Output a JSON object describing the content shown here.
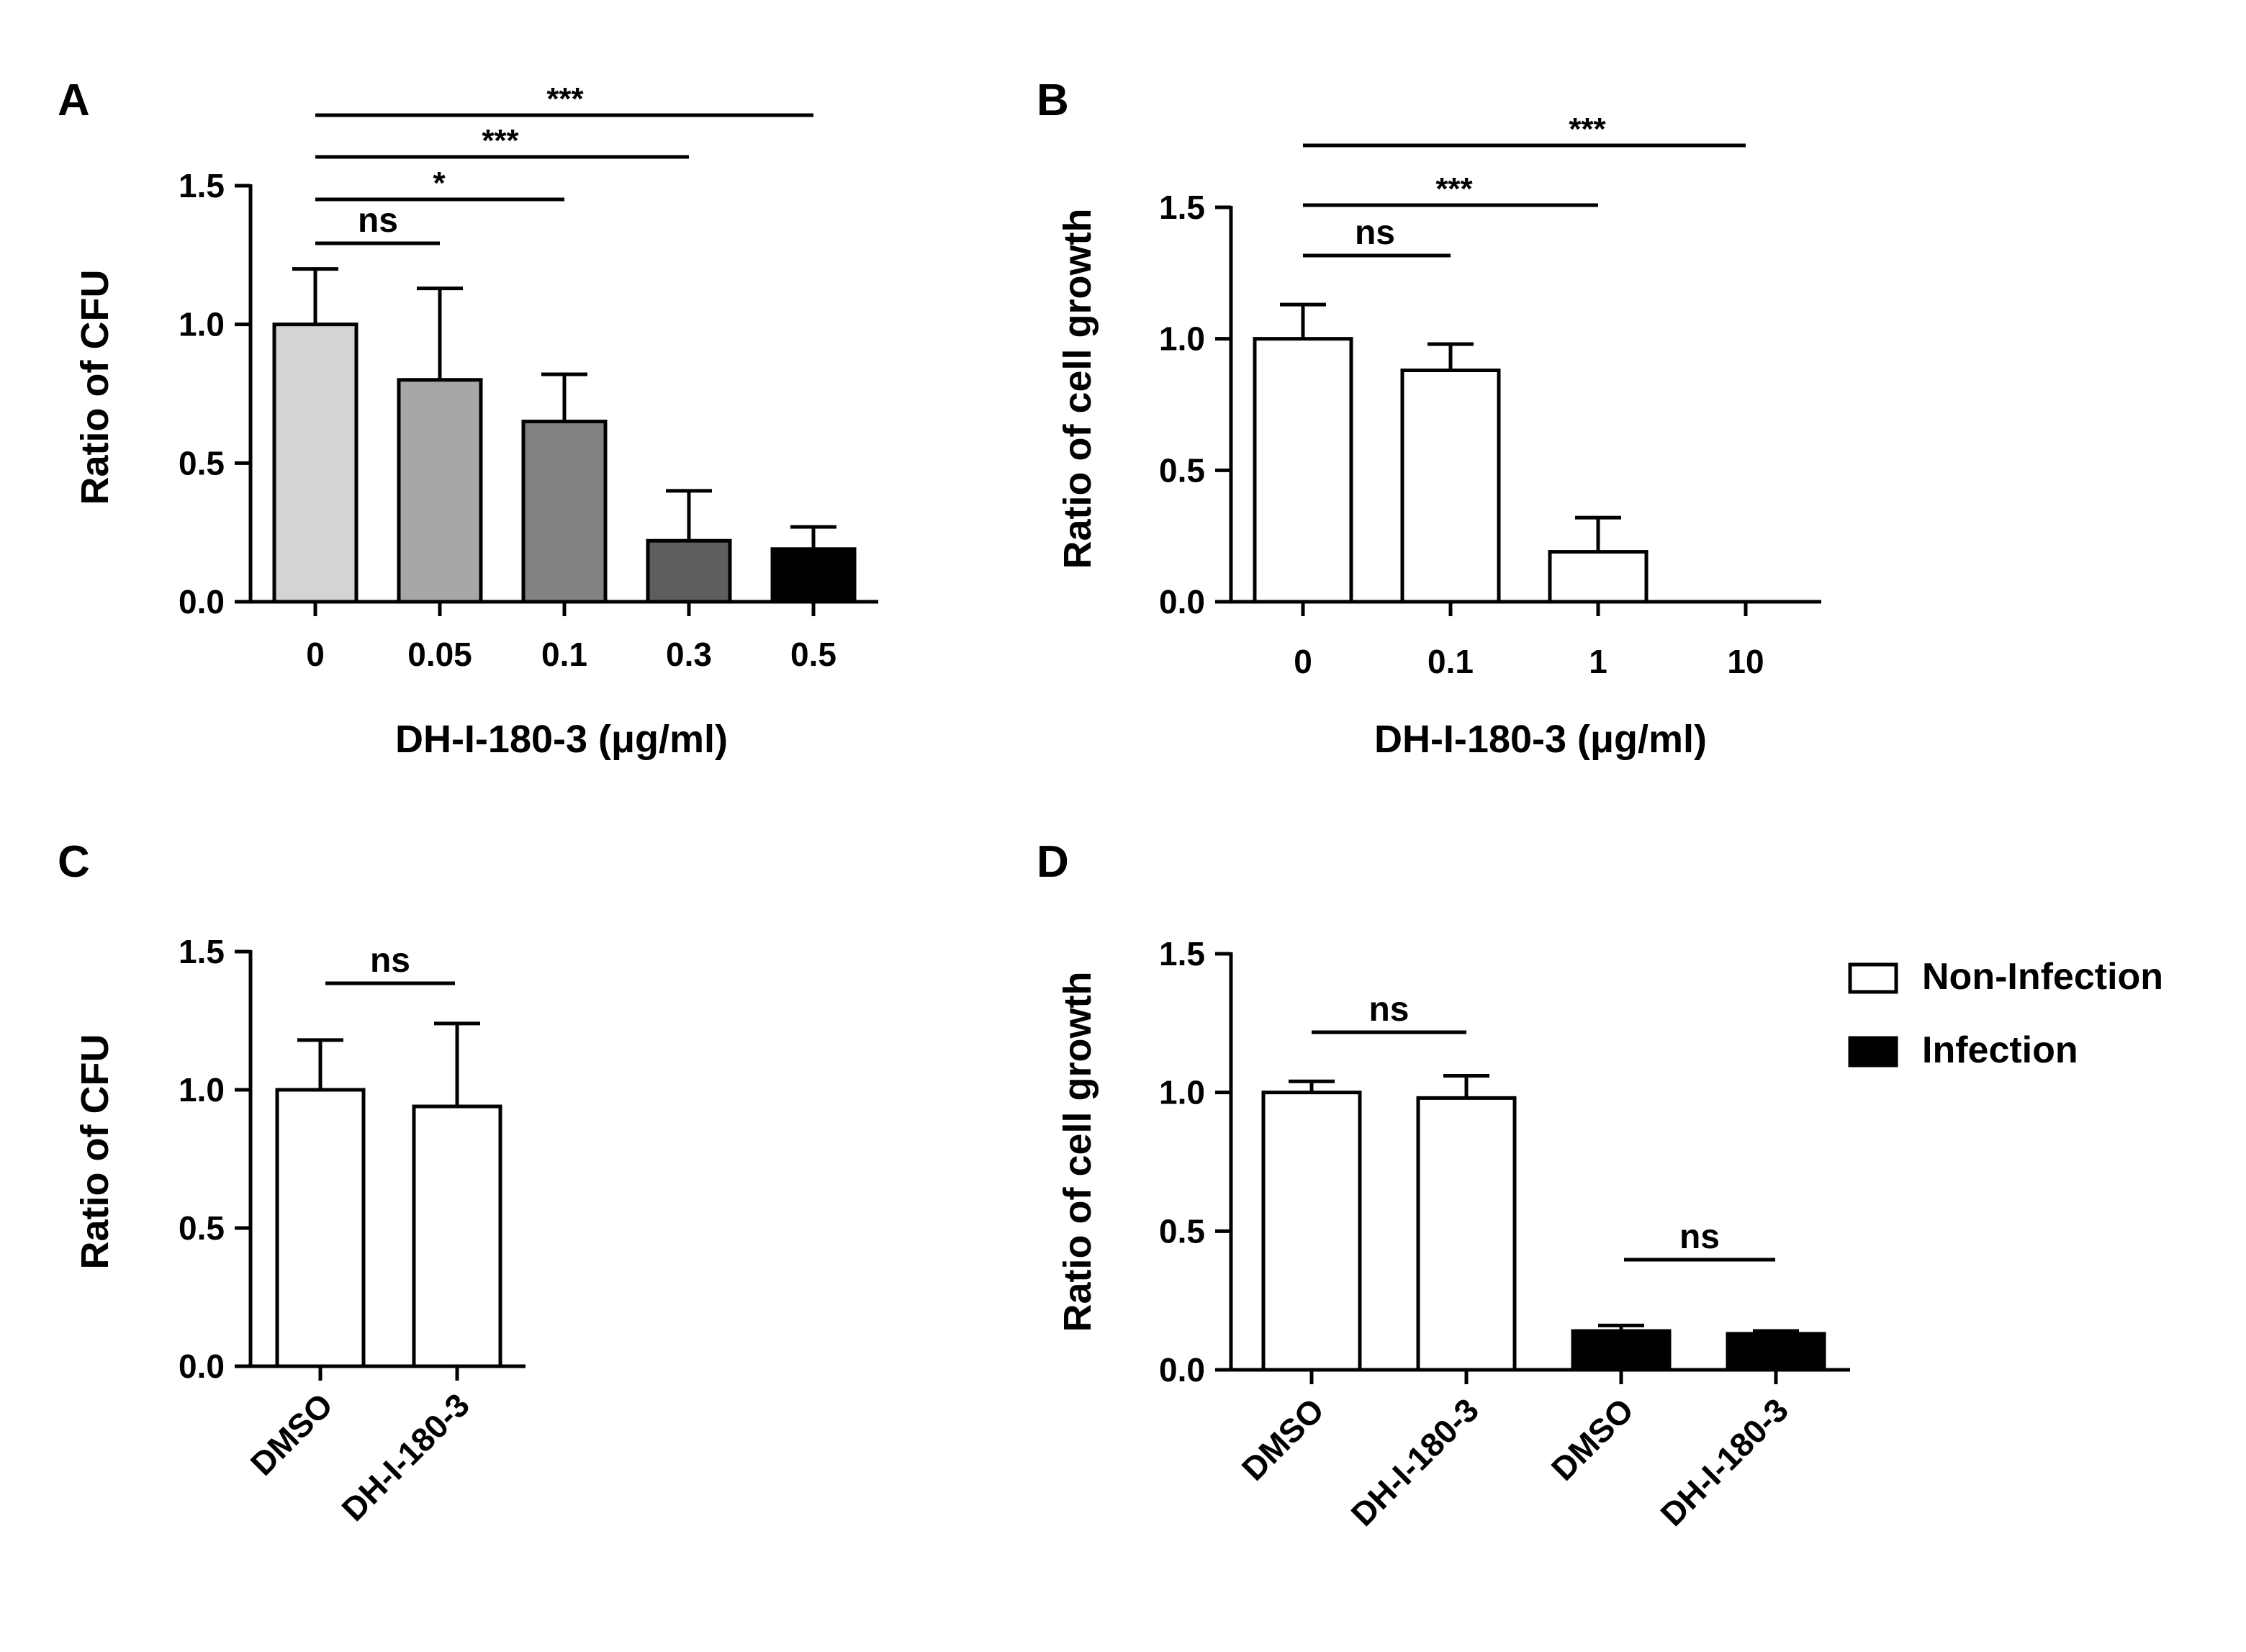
{
  "chart_data": [
    {
      "panel": "A",
      "type": "bar",
      "ylabel": "Ratio of CFU",
      "xlabel": "DH-I-180-3  (μg/ml)",
      "ylim": [
        0,
        1.5
      ],
      "yticks": [
        "0.0",
        "0.5",
        "1.0",
        "1.5"
      ],
      "categories": [
        "0",
        "0.05",
        "0.1",
        "0.3",
        "0.5"
      ],
      "values": [
        1.0,
        0.8,
        0.65,
        0.22,
        0.19
      ],
      "errors": [
        0.2,
        0.33,
        0.17,
        0.18,
        0.08
      ],
      "colors": [
        "#d4d4d4",
        "#a7a7a9",
        "#828282",
        "#5e5e5e",
        "#000000"
      ],
      "comparisons": [
        {
          "from": 0,
          "to": 1,
          "label": "ns"
        },
        {
          "from": 0,
          "to": 2,
          "label": "*"
        },
        {
          "from": 0,
          "to": 3,
          "label": "***"
        },
        {
          "from": 0,
          "to": 4,
          "label": "***"
        }
      ]
    },
    {
      "panel": "B",
      "type": "bar",
      "ylabel": "Ratio of cell growth",
      "xlabel": "DH-I-180-3  (μg/ml)",
      "ylim": [
        0,
        1.5
      ],
      "yticks": [
        "0.0",
        "0.5",
        "1.0",
        "1.5"
      ],
      "categories": [
        "0",
        "0.1",
        "1",
        "10"
      ],
      "values": [
        1.0,
        0.88,
        0.19,
        0.0
      ],
      "errors": [
        0.13,
        0.1,
        0.13,
        0.0
      ],
      "colors": [
        "#ffffff",
        "#ffffff",
        "#ffffff",
        "#ffffff"
      ],
      "comparisons": [
        {
          "from": 0,
          "to": 1,
          "label": "ns"
        },
        {
          "from": 0,
          "to": 2,
          "label": "***"
        },
        {
          "from": 0,
          "to": 3,
          "label": "***"
        }
      ]
    },
    {
      "panel": "C",
      "type": "bar",
      "ylabel": "Ratio of CFU",
      "ylim": [
        0,
        1.5
      ],
      "yticks": [
        "0.0",
        "0.5",
        "1.0",
        "1.5"
      ],
      "categories": [
        "DMSO",
        "DH-I-180-3"
      ],
      "values": [
        1.0,
        0.94
      ],
      "errors": [
        0.18,
        0.3
      ],
      "colors": [
        "#ffffff",
        "#ffffff"
      ],
      "comparisons": [
        {
          "from": 0,
          "to": 1,
          "label": "ns"
        }
      ]
    },
    {
      "panel": "D",
      "type": "bar",
      "ylabel": "Ratio of cell growth",
      "ylim": [
        0,
        1.5
      ],
      "yticks": [
        "0.0",
        "0.5",
        "1.0",
        "1.5"
      ],
      "categories": [
        "DMSO",
        "DH-I-180-3",
        "DMSO",
        "DH-I-180-3"
      ],
      "values": [
        1.0,
        0.98,
        0.14,
        0.13
      ],
      "errors": [
        0.04,
        0.08,
        0.02,
        0.01
      ],
      "colors": [
        "#ffffff",
        "#ffffff",
        "#000000",
        "#000000"
      ],
      "comparisons": [
        {
          "from": 0,
          "to": 1,
          "label": "ns"
        },
        {
          "from": 2,
          "to": 3,
          "label": "ns"
        }
      ],
      "legend": [
        {
          "label": "Non-Infection",
          "color": "#ffffff"
        },
        {
          "label": "Infection",
          "color": "#000000"
        }
      ],
      "legend_position": "top-right"
    }
  ]
}
